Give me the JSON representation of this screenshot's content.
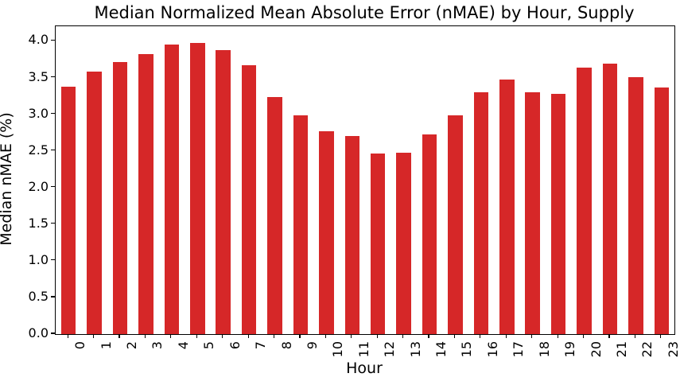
{
  "chart_data": {
    "type": "bar",
    "title": "Median Normalized Mean Absolute Error (nMAE) by Hour, Supply",
    "xlabel": "Hour",
    "ylabel": "Median nMAE (%)",
    "categories": [
      "0",
      "1",
      "2",
      "3",
      "4",
      "5",
      "6",
      "7",
      "8",
      "9",
      "10",
      "11",
      "12",
      "13",
      "14",
      "15",
      "16",
      "17",
      "18",
      "19",
      "20",
      "21",
      "22",
      "23"
    ],
    "values": [
      3.38,
      3.58,
      3.71,
      3.82,
      3.95,
      3.97,
      3.88,
      3.67,
      3.23,
      2.99,
      2.77,
      2.7,
      2.46,
      2.47,
      2.72,
      2.98,
      3.3,
      3.47,
      3.3,
      3.28,
      3.64,
      3.69,
      3.51,
      3.36
    ],
    "ylim": [
      0,
      4.2
    ],
    "ytick_labels": [
      "0.0",
      "0.5",
      "1.0",
      "1.5",
      "2.0",
      "2.5",
      "3.0",
      "3.5",
      "4.0"
    ],
    "ytick_values": [
      0.0,
      0.5,
      1.0,
      1.5,
      2.0,
      2.5,
      3.0,
      3.5,
      4.0
    ],
    "xtick_rotation_deg": 90,
    "grid": false,
    "legend_position": "none",
    "bar_color": "#d62728",
    "axis_color": "#000000",
    "background_color": "#ffffff"
  }
}
